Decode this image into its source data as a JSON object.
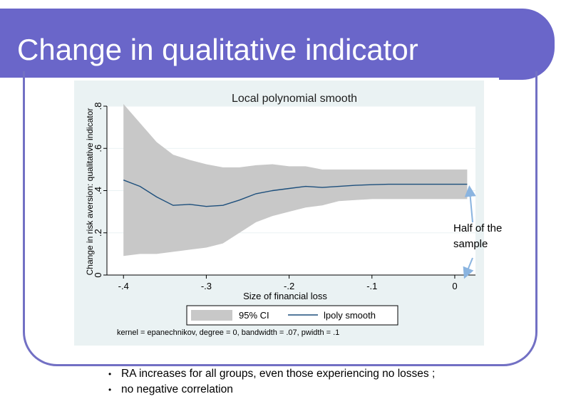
{
  "slide": {
    "title": "Change in qualitative indicator",
    "callout": "Half of the sample",
    "bullets": [
      "RA increases for all groups, even those experiencing no losses ;",
      "no negative correlation"
    ],
    "colors": {
      "title_bar": "#6a66c9",
      "frame": "#7270c4",
      "arrow": "#8ab4e0"
    }
  },
  "chart_data": {
    "type": "line",
    "title": "Local polynomial smooth",
    "xlabel": "Size of financial loss",
    "ylabel": "Change in risk aversion: qualitative indicator",
    "xlim": [
      -0.42,
      0.025
    ],
    "ylim": [
      0,
      0.8
    ],
    "x_ticks": [
      -0.4,
      -0.3,
      -0.2,
      -0.1,
      0
    ],
    "x_tick_labels": [
      "-.4",
      "-.3",
      "-.2",
      "-.1",
      "0"
    ],
    "y_ticks": [
      0,
      0.2,
      0.4,
      0.6,
      0.8
    ],
    "y_tick_labels": [
      "0",
      ".2",
      ".4",
      ".6",
      ".8"
    ],
    "legend": [
      "95% CI",
      "lpoly smooth"
    ],
    "legend_position": "bottom",
    "note": "kernel = epanechnikov, degree = 0, bandwidth = .07, pwidth = .1",
    "series": [
      {
        "name": "lpoly smooth",
        "x": [
          -0.4,
          -0.38,
          -0.36,
          -0.34,
          -0.32,
          -0.3,
          -0.28,
          -0.26,
          -0.24,
          -0.22,
          -0.2,
          -0.18,
          -0.16,
          -0.14,
          -0.12,
          -0.1,
          -0.08,
          -0.06,
          -0.04,
          -0.02,
          0,
          0.015
        ],
        "y": [
          0.45,
          0.42,
          0.37,
          0.33,
          0.335,
          0.325,
          0.33,
          0.355,
          0.385,
          0.4,
          0.41,
          0.42,
          0.415,
          0.42,
          0.425,
          0.428,
          0.43,
          0.43,
          0.43,
          0.43,
          0.43,
          0.43
        ]
      },
      {
        "name": "95% CI",
        "x": [
          -0.4,
          -0.38,
          -0.36,
          -0.34,
          -0.32,
          -0.3,
          -0.28,
          -0.26,
          -0.24,
          -0.22,
          -0.2,
          -0.18,
          -0.16,
          -0.14,
          -0.12,
          -0.1,
          -0.08,
          -0.06,
          -0.04,
          -0.02,
          0,
          0.015
        ],
        "upper": [
          0.81,
          0.72,
          0.63,
          0.57,
          0.545,
          0.525,
          0.51,
          0.51,
          0.52,
          0.525,
          0.515,
          0.515,
          0.5,
          0.5,
          0.5,
          0.5,
          0.5,
          0.5,
          0.5,
          0.5,
          0.5,
          0.5
        ],
        "lower": [
          0.09,
          0.1,
          0.1,
          0.11,
          0.12,
          0.13,
          0.15,
          0.2,
          0.25,
          0.28,
          0.3,
          0.32,
          0.33,
          0.35,
          0.355,
          0.36,
          0.36,
          0.36,
          0.36,
          0.36,
          0.36,
          0.36
        ]
      }
    ]
  }
}
